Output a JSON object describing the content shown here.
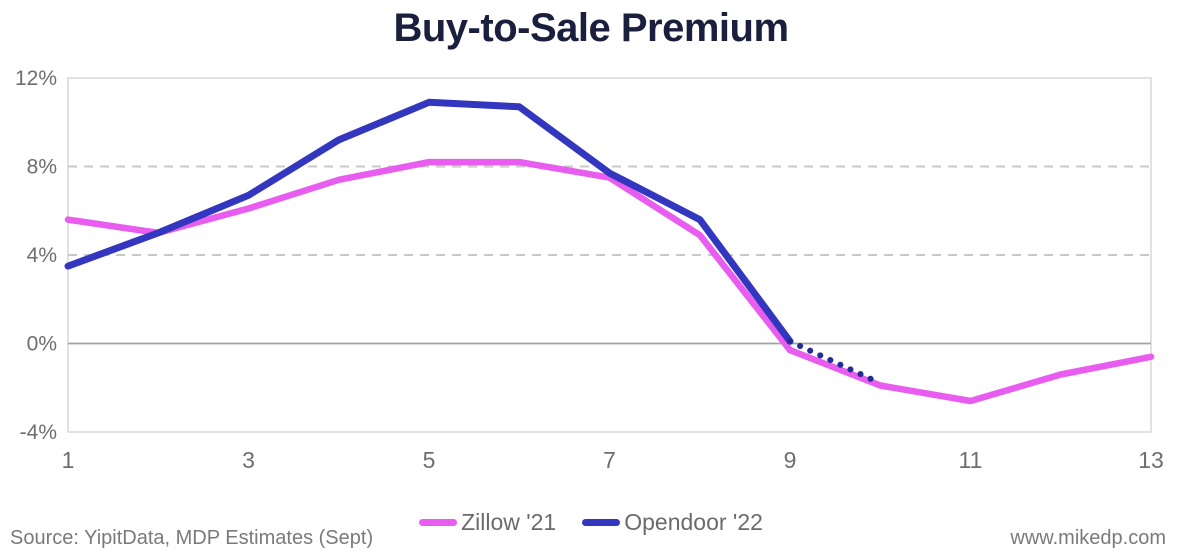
{
  "title": "Buy-to-Sale Premium",
  "footer": {
    "source": "Source: YipitData, MDP Estimates (Sept)",
    "website": "www.mikedp.com"
  },
  "legend": [
    {
      "label": "Zillow '21",
      "color": "#E85CEF"
    },
    {
      "label": "Opendoor '22",
      "color": "#3337C0"
    }
  ],
  "colors": {
    "title": "#1A1F3D",
    "axis_text": "#6E6E6E",
    "border": "#D8D8D8",
    "grid_dashed": "#C9C9C9",
    "zero_line": "#A3A3A3",
    "zillow": "#E85CEF",
    "opendoor": "#3337C0",
    "opendoor_dots": "#232E92"
  },
  "chart_data": {
    "type": "line",
    "title": "Buy-to-Sale Premium",
    "xlabel": "",
    "ylabel": "",
    "xlim": [
      1,
      13
    ],
    "ylim": [
      -4,
      12
    ],
    "xticks": [
      1,
      3,
      5,
      7,
      9,
      11,
      13
    ],
    "yticks": [
      {
        "label": "12%",
        "value": 12
      },
      {
        "label": "8%",
        "value": 8
      },
      {
        "label": "4%",
        "value": 4
      },
      {
        "label": "0%",
        "value": 0
      },
      {
        "label": "-4%",
        "value": -4
      }
    ],
    "grid": {
      "dashed_gridlines_at": [
        8,
        4
      ],
      "solid_zero_line_at": 0,
      "vertical_gridlines": false
    },
    "legend_position": "bottom-center",
    "series": [
      {
        "name": "Zillow '21",
        "color": "#E85CEF",
        "style": "solid",
        "x": [
          1,
          2,
          3,
          4,
          5,
          6,
          7,
          8,
          9,
          10,
          11,
          12,
          13
        ],
        "values": [
          5.6,
          5.0,
          6.1,
          7.4,
          8.2,
          8.2,
          7.5,
          4.9,
          -0.3,
          -1.9,
          -2.6,
          -1.4,
          -0.6
        ]
      },
      {
        "name": "Opendoor '22",
        "color": "#3337C0",
        "style": "solid",
        "x": [
          1,
          2,
          3,
          4,
          5,
          6,
          7,
          8,
          9
        ],
        "values": [
          3.5,
          5.0,
          6.7,
          9.2,
          10.9,
          10.7,
          7.7,
          5.6,
          0.1
        ]
      },
      {
        "name": "Opendoor '22 (dotted projection)",
        "color": "#232E92",
        "style": "dotted",
        "x": [
          9,
          10
        ],
        "values": [
          0.1,
          -1.8
        ]
      }
    ]
  }
}
